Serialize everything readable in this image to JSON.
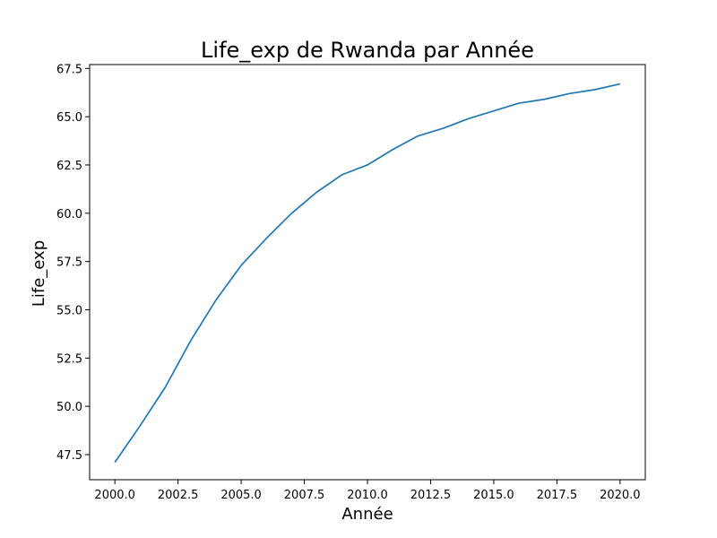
{
  "chart_data": {
    "type": "line",
    "title": "Life_exp de Rwanda par Année",
    "xlabel": "Année",
    "ylabel": "Life_exp",
    "xlim": [
      1999.0,
      2021.0
    ],
    "ylim": [
      46.2,
      67.7
    ],
    "xticks": [
      2000.0,
      2002.5,
      2005.0,
      2007.5,
      2010.0,
      2012.5,
      2015.0,
      2017.5,
      2020.0
    ],
    "xtick_labels": [
      "2000.0",
      "2002.5",
      "2005.0",
      "2007.5",
      "2010.0",
      "2012.5",
      "2015.0",
      "2017.5",
      "2020.0"
    ],
    "yticks": [
      47.5,
      50.0,
      52.5,
      55.0,
      57.5,
      60.0,
      62.5,
      65.0,
      67.5
    ],
    "ytick_labels": [
      "47.5",
      "50.0",
      "52.5",
      "55.0",
      "57.5",
      "60.0",
      "62.5",
      "65.0",
      "67.5"
    ],
    "grid": false,
    "series": [
      {
        "color": "#1f77b4",
        "x": [
          2000,
          2001,
          2002,
          2003,
          2004,
          2005,
          2006,
          2007,
          2008,
          2009,
          2010,
          2011,
          2012,
          2013,
          2014,
          2015,
          2016,
          2017,
          2018,
          2019,
          2020
        ],
        "y": [
          47.1,
          49.0,
          51.0,
          53.4,
          55.5,
          57.3,
          58.7,
          60.0,
          61.1,
          62.0,
          62.5,
          63.3,
          64.0,
          64.4,
          64.9,
          65.3,
          65.7,
          65.9,
          66.2,
          66.4,
          66.7
        ]
      }
    ]
  }
}
